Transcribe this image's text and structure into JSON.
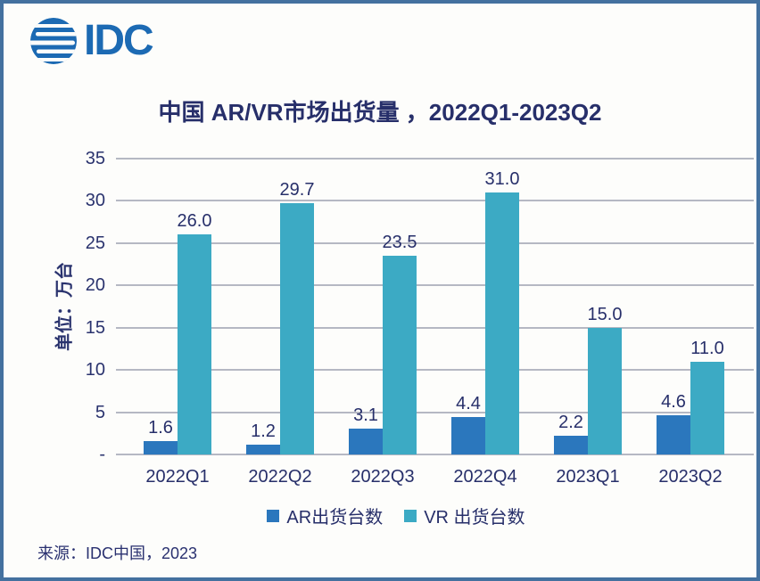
{
  "logo": {
    "text": "IDC",
    "color": "#1c6ab3"
  },
  "title": "中国 AR/VR市场出货量 ，2022Q1-2023Q2",
  "source": "来源：IDC中国，2023",
  "colors": {
    "text_navy": "#272f6a",
    "border_blue": "#44719f",
    "gridline_gray": "#b5b8c3",
    "background": "#fdfdfb",
    "ar_bar_blue": "#2b77bd",
    "vr_bar_teal": "#3caac4"
  },
  "chart_data": {
    "type": "bar",
    "title": "中国 AR/VR市场出货量 ，2022Q1-2023Q2",
    "ylabel": "单位：万台",
    "categories": [
      "2022Q1",
      "2022Q2",
      "2022Q3",
      "2022Q4",
      "2023Q1",
      "2023Q2"
    ],
    "series": [
      {
        "key": "ar",
        "name": "AR出货台数",
        "color": "#2b77bd",
        "values": [
          1.6,
          1.2,
          3.1,
          4.4,
          2.2,
          4.6
        ],
        "labels": [
          "1.6",
          "1.2",
          "3.1",
          "4.4",
          "2.2",
          "4.6"
        ]
      },
      {
        "key": "vr",
        "name": "VR 出货台数",
        "color": "#3caac4",
        "values": [
          26.0,
          29.7,
          23.5,
          31.0,
          15.0,
          11.0
        ],
        "labels": [
          "26.0",
          "29.7",
          "23.5",
          "31.0",
          "15.0",
          "11.0"
        ]
      }
    ],
    "ylim": [
      0,
      35
    ],
    "ytick_step": 5,
    "ytick_labels": [
      "-",
      "5",
      "10",
      "15",
      "20",
      "25",
      "30",
      "35"
    ],
    "grid": true,
    "legend_position": "bottom",
    "value_labels": true
  }
}
